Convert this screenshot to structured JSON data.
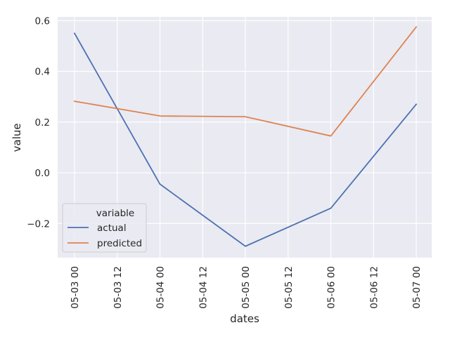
{
  "chart_data": {
    "type": "line",
    "title": "",
    "xlabel": "dates",
    "ylabel": "value",
    "x": [
      "05-03 00",
      "05-04 00",
      "05-05 00",
      "05-06 00",
      "05-07 00"
    ],
    "x_hours": [
      0,
      24,
      48,
      72,
      96
    ],
    "xticks": [
      "05-03 00",
      "05-03 12",
      "05-04 00",
      "05-04 12",
      "05-05 00",
      "05-05 12",
      "05-06 00",
      "05-06 12",
      "05-07 00"
    ],
    "xticks_hours": [
      0,
      12,
      24,
      36,
      48,
      60,
      72,
      84,
      96
    ],
    "yticks": [
      -0.2,
      0.0,
      0.2,
      0.4,
      0.6
    ],
    "ytick_labels": [
      "−0.2",
      "0.0",
      "0.2",
      "0.4",
      "0.6"
    ],
    "ylim": [
      -0.335,
      0.615
    ],
    "grid": true,
    "legend": {
      "title": "variable",
      "placement": "lower-left"
    },
    "series": [
      {
        "name": "actual",
        "color": "#4c72b0",
        "values": [
          0.55,
          -0.045,
          -0.29,
          -0.14,
          0.27
        ]
      },
      {
        "name": "predicted",
        "color": "#dd8452",
        "values": [
          0.282,
          0.224,
          0.221,
          0.145,
          0.575
        ]
      }
    ]
  }
}
